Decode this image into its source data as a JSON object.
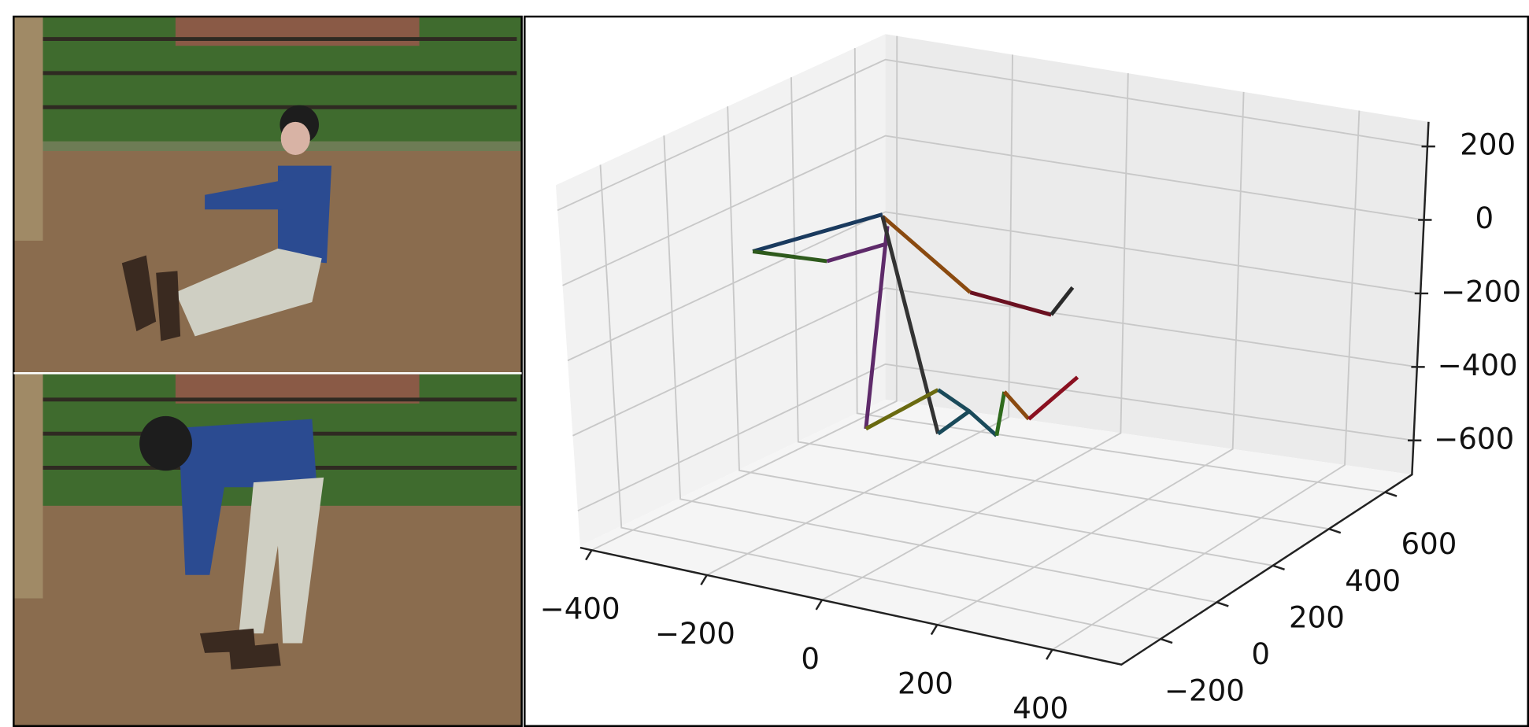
{
  "plot3d": {
    "xlim": [
      -420,
      520
    ],
    "ylim": [
      -340,
      696
    ],
    "zlim": [
      -693,
      267
    ],
    "xticks": [
      {
        "value": -400,
        "label": "−400"
      },
      {
        "value": -200,
        "label": "−200"
      },
      0,
      200,
      400
    ],
    "yticks": [
      {
        "value": -200,
        "label": "−200"
      },
      0,
      200,
      400,
      600
    ],
    "zticks": [
      200,
      0,
      {
        "value": -200,
        "label": "−200"
      },
      {
        "value": -400,
        "label": "−400"
      },
      {
        "value": -600,
        "label": "−600"
      }
    ]
  }
}
